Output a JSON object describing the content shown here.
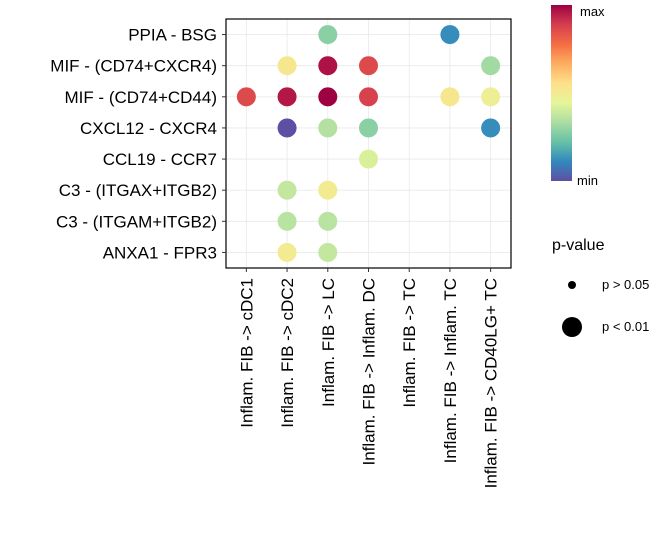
{
  "chart_data": {
    "type": "dot-matrix",
    "title": "",
    "rows": [
      "PPIA - BSG",
      "MIF - (CD74+CXCR4)",
      "MIF - (CD74+CD44)",
      "CXCL12 - CXCR4",
      "CCL19 - CCR7",
      "C3 - (ITGAX+ITGB2)",
      "C3 - (ITGAM+ITGB2)",
      "ANXA1 - FPR3"
    ],
    "columns": [
      "Inflam. FIB -> cDC1",
      "Inflam. FIB -> cDC2",
      "Inflam. FIB -> LC",
      "Inflam. FIB -> Inflam. DC",
      "Inflam. FIB -> TC",
      "Inflam. FIB -> Inflam. TC",
      "Inflam. FIB -> CD40LG+ TC"
    ],
    "points": [
      {
        "row": 0,
        "col": 2,
        "value": 0.28,
        "pvalue": "p < 0.01"
      },
      {
        "row": 0,
        "col": 5,
        "value": 0.12,
        "pvalue": "p < 0.01"
      },
      {
        "row": 1,
        "col": 1,
        "value": 0.52,
        "pvalue": "p < 0.01"
      },
      {
        "row": 1,
        "col": 2,
        "value": 0.97,
        "pvalue": "p < 0.01"
      },
      {
        "row": 1,
        "col": 3,
        "value": 0.86,
        "pvalue": "p < 0.01"
      },
      {
        "row": 1,
        "col": 6,
        "value": 0.32,
        "pvalue": "p < 0.01"
      },
      {
        "row": 2,
        "col": 0,
        "value": 0.86,
        "pvalue": "p < 0.01"
      },
      {
        "row": 2,
        "col": 1,
        "value": 0.96,
        "pvalue": "p < 0.01"
      },
      {
        "row": 2,
        "col": 2,
        "value": 1.0,
        "pvalue": "p < 0.01"
      },
      {
        "row": 2,
        "col": 3,
        "value": 0.88,
        "pvalue": "p < 0.01"
      },
      {
        "row": 2,
        "col": 5,
        "value": 0.52,
        "pvalue": "p < 0.01"
      },
      {
        "row": 2,
        "col": 6,
        "value": 0.48,
        "pvalue": "p < 0.01"
      },
      {
        "row": 3,
        "col": 1,
        "value": 0.0,
        "pvalue": "p < 0.01"
      },
      {
        "row": 3,
        "col": 2,
        "value": 0.35,
        "pvalue": "p < 0.01"
      },
      {
        "row": 3,
        "col": 3,
        "value": 0.28,
        "pvalue": "p < 0.01"
      },
      {
        "row": 3,
        "col": 6,
        "value": 0.12,
        "pvalue": "p < 0.01"
      },
      {
        "row": 4,
        "col": 3,
        "value": 0.42,
        "pvalue": "p < 0.01"
      },
      {
        "row": 5,
        "col": 1,
        "value": 0.38,
        "pvalue": "p < 0.01"
      },
      {
        "row": 5,
        "col": 2,
        "value": 0.5,
        "pvalue": "p < 0.01"
      },
      {
        "row": 6,
        "col": 1,
        "value": 0.36,
        "pvalue": "p < 0.01"
      },
      {
        "row": 6,
        "col": 2,
        "value": 0.36,
        "pvalue": "p < 0.01"
      },
      {
        "row": 7,
        "col": 1,
        "value": 0.5,
        "pvalue": "p < 0.01"
      },
      {
        "row": 7,
        "col": 2,
        "value": 0.38,
        "pvalue": "p < 0.01"
      }
    ],
    "color_scale": {
      "stops": [
        "#5e4fa2",
        "#3288bd",
        "#66c2a5",
        "#abdda4",
        "#e6f598",
        "#fee08b",
        "#fdae61",
        "#f46d43",
        "#d53e4f",
        "#9e0142"
      ],
      "min_label": "min",
      "max_label": "max"
    },
    "size_legend": {
      "title": "p-value",
      "entries": [
        {
          "label": "p > 0.05",
          "size": "small"
        },
        {
          "label": "p < 0.01",
          "size": "large"
        }
      ]
    }
  }
}
